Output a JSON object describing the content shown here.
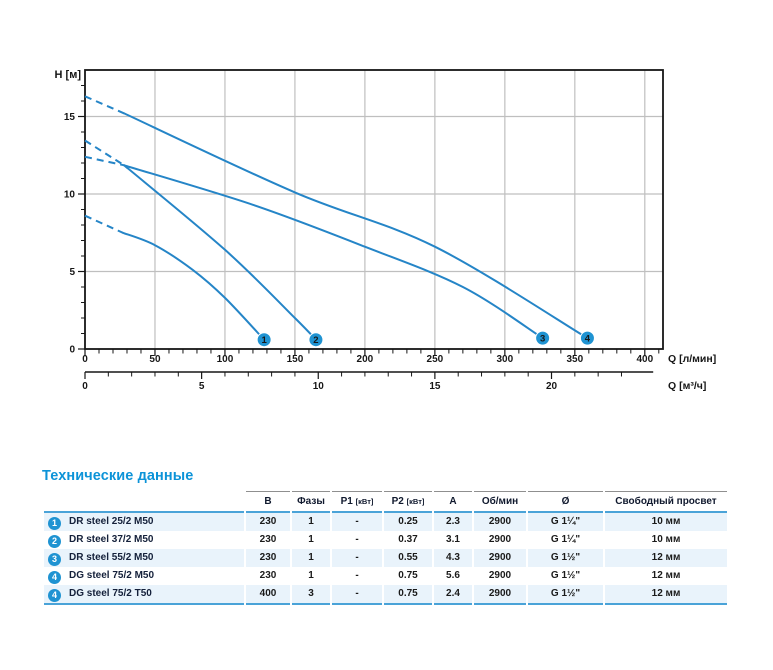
{
  "chart_data": {
    "type": "line",
    "title": "",
    "ylabel": "H [м]",
    "xlabel_primary": "Q [л/мин]",
    "xlabel_secondary": "Q [м³/ч]",
    "grid": true,
    "colors": {
      "curve": "#2585c7",
      "marker": "#1f93d2",
      "grid": "#bfbfbf",
      "axis": "#161616"
    },
    "y_axis": {
      "min": 0,
      "max": 18,
      "major_ticks": [
        0,
        5,
        10,
        15
      ],
      "minor_step": 1,
      "minor_max": 17
    },
    "x_axis": {
      "min": 0,
      "max": 413,
      "major_ticks": [
        0,
        50,
        100,
        150,
        200,
        250,
        300,
        350,
        400
      ],
      "minor_step": 10,
      "minor_max": 410
    },
    "x2_axis": {
      "labeled_ticks": [
        0,
        5,
        10,
        15,
        20
      ],
      "minor_step": 1,
      "minor_max": 23,
      "lmin_per_unit": 16.6667,
      "axis_end_lmin": 406
    },
    "series": [
      {
        "id": "1",
        "model": "DR steel 25/2 M50",
        "dashed": [
          [
            0,
            8.6
          ],
          [
            27,
            7.5
          ]
        ],
        "solid": [
          [
            27,
            7.5
          ],
          [
            50,
            6.7
          ],
          [
            77,
            5.1
          ],
          [
            100,
            3.3
          ],
          [
            128,
            0.6
          ]
        ]
      },
      {
        "id": "2",
        "model": "DR steel 37/2 M50",
        "dashed": [
          [
            0,
            12.4
          ],
          [
            28,
            11.85
          ]
        ],
        "solid": [
          [
            28,
            11.85
          ],
          [
            100,
            6.4
          ],
          [
            150,
            2.0
          ],
          [
            165,
            0.6
          ]
        ]
      },
      {
        "id": "3",
        "model": "DR steel 55/2 M50",
        "dashed": [
          [
            0,
            13.45
          ],
          [
            28,
            11.85
          ]
        ],
        "solid": [
          [
            28,
            11.85
          ],
          [
            120,
            9.3
          ],
          [
            200,
            6.6
          ],
          [
            270,
            4.0
          ],
          [
            327,
            0.7
          ]
        ]
      },
      {
        "id": "4",
        "model": "DG steel 75/2",
        "dashed": [
          [
            0,
            16.3
          ],
          [
            28,
            15.2
          ]
        ],
        "solid": [
          [
            28,
            15.2
          ],
          [
            150,
            10.1
          ],
          [
            250,
            6.6
          ],
          [
            359,
            0.7
          ]
        ]
      }
    ]
  },
  "table": {
    "title": "Технические данные",
    "columns": [
      {
        "key": "model",
        "label": "",
        "unit": ""
      },
      {
        "key": "v",
        "label": "В",
        "unit": ""
      },
      {
        "key": "phases",
        "label": "Фазы",
        "unit": ""
      },
      {
        "key": "p1",
        "label": "P1",
        "unit": "[кВт]"
      },
      {
        "key": "p2",
        "label": "P2",
        "unit": "[кВт]"
      },
      {
        "key": "a",
        "label": "А",
        "unit": ""
      },
      {
        "key": "rpm",
        "label": "Об/мин",
        "unit": ""
      },
      {
        "key": "d",
        "label": "Ø",
        "unit": ""
      },
      {
        "key": "clear",
        "label": "Свободный просвет",
        "unit": ""
      }
    ],
    "rows": [
      {
        "marker": "1",
        "model": "DR steel 25/2 M50",
        "v": "230",
        "phases": "1",
        "p1": "-",
        "p2": "0.25",
        "a": "2.3",
        "rpm": "2900",
        "d": "G 1¼\"",
        "clear": "10 мм"
      },
      {
        "marker": "2",
        "model": "DR steel 37/2 M50",
        "v": "230",
        "phases": "1",
        "p1": "-",
        "p2": "0.37",
        "a": "3.1",
        "rpm": "2900",
        "d": "G 1¼\"",
        "clear": "10 мм"
      },
      {
        "marker": "3",
        "model": "DR steel 55/2 M50",
        "v": "230",
        "phases": "1",
        "p1": "-",
        "p2": "0.55",
        "a": "4.3",
        "rpm": "2900",
        "d": "G 1½\"",
        "clear": "12 мм"
      },
      {
        "marker": "4",
        "model": "DG steel 75/2 M50",
        "v": "230",
        "phases": "1",
        "p1": "-",
        "p2": "0.75",
        "a": "5.6",
        "rpm": "2900",
        "d": "G 1½\"",
        "clear": "12 мм"
      },
      {
        "marker": "4",
        "model": "DG steel 75/2 T50",
        "v": "400",
        "phases": "3",
        "p1": "-",
        "p2": "0.75",
        "a": "2.4",
        "rpm": "2900",
        "d": "G 1½\"",
        "clear": "12 мм"
      }
    ]
  }
}
